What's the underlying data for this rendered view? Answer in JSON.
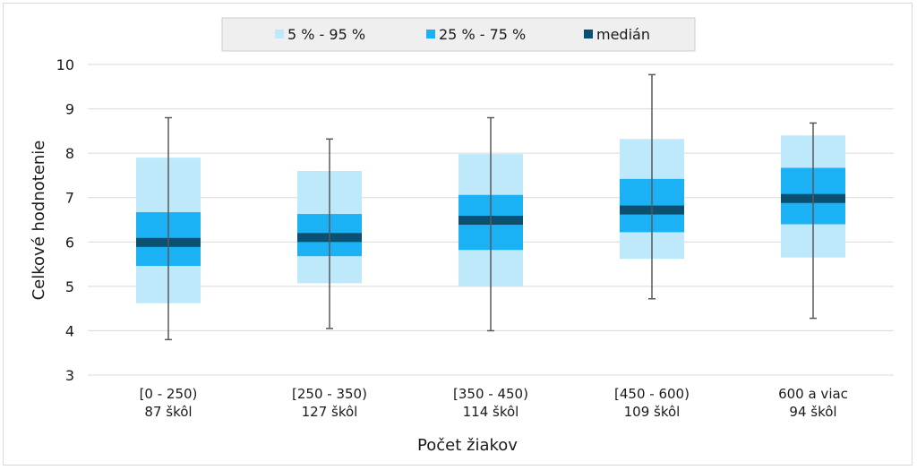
{
  "chart_data": {
    "type": "box",
    "xlabel": "Počet žiakov",
    "ylabel": "Celkové hodnotenie",
    "ylim": [
      3,
      10
    ],
    "yticks": [
      3,
      4,
      5,
      6,
      7,
      8,
      9,
      10
    ],
    "grid": true,
    "legend_position": "top",
    "legend": [
      {
        "label": "5 % - 95 %",
        "color": "#bde9fb"
      },
      {
        "label": "25 % - 75 %",
        "color": "#1ab2f5"
      },
      {
        "label": "medián",
        "color": "#0b4f71"
      }
    ],
    "categories": [
      {
        "range": "[0 - 250)",
        "count": "87 škôl",
        "min": 3.8,
        "p5": 4.62,
        "q1": 5.46,
        "median": 5.99,
        "q3": 6.67,
        "p95": 7.9,
        "max": 8.8
      },
      {
        "range": "[250 - 350)",
        "count": "127 škôl",
        "min": 4.05,
        "p5": 5.07,
        "q1": 5.68,
        "median": 6.1,
        "q3": 6.63,
        "p95": 7.6,
        "max": 8.32
      },
      {
        "range": "[350 - 450)",
        "count": "114 škôl",
        "min": 4.0,
        "p5": 5.0,
        "q1": 5.82,
        "median": 6.49,
        "q3": 7.06,
        "p95": 7.98,
        "max": 8.8
      },
      {
        "range": "[450 - 600)",
        "count": "109 škôl",
        "min": 4.72,
        "p5": 5.62,
        "q1": 6.22,
        "median": 6.72,
        "q3": 7.42,
        "p95": 8.32,
        "max": 9.77
      },
      {
        "range": "600 a viac",
        "count": "94 škôl",
        "min": 4.28,
        "p5": 5.65,
        "q1": 6.4,
        "median": 6.98,
        "q3": 7.67,
        "p95": 8.4,
        "max": 8.68
      }
    ]
  }
}
